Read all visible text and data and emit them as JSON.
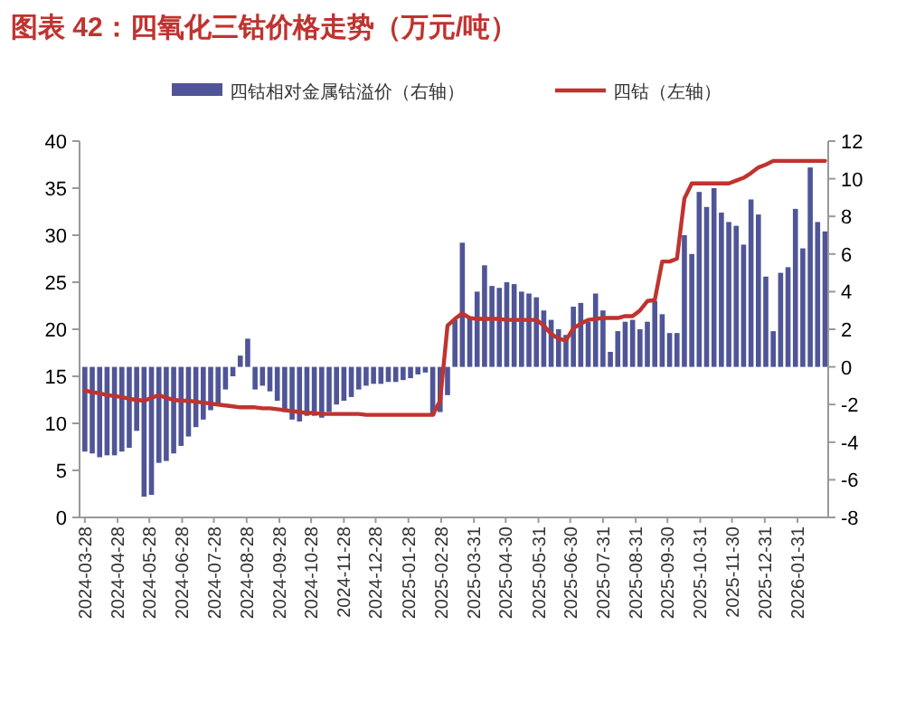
{
  "chart_data": {
    "type": "bar",
    "title": "图表 42：四氧化三钴价格走势（万元/吨）",
    "x": [
      "2024-03-28",
      "2024-04-04",
      "2024-04-11",
      "2024-04-18",
      "2024-04-25",
      "2024-05-02",
      "2024-05-09",
      "2024-05-16",
      "2024-05-23",
      "2024-05-30",
      "2024-06-06",
      "2024-06-13",
      "2024-06-20",
      "2024-06-27",
      "2024-07-04",
      "2024-07-11",
      "2024-07-18",
      "2024-07-25",
      "2024-08-01",
      "2024-08-08",
      "2024-08-15",
      "2024-08-22",
      "2024-08-29",
      "2024-09-05",
      "2024-09-12",
      "2024-09-19",
      "2024-09-26",
      "2024-10-03",
      "2024-10-10",
      "2024-10-17",
      "2024-10-24",
      "2024-10-31",
      "2024-11-07",
      "2024-11-14",
      "2024-11-21",
      "2024-11-28",
      "2024-12-05",
      "2024-12-12",
      "2024-12-19",
      "2024-12-26",
      "2025-01-02",
      "2025-01-09",
      "2025-01-16",
      "2025-01-23",
      "2025-01-30",
      "2025-02-06",
      "2025-02-13",
      "2025-02-20",
      "2025-02-27",
      "2025-03-06",
      "2025-03-13",
      "2025-03-20",
      "2025-03-27",
      "2025-04-03",
      "2025-04-10",
      "2025-04-17",
      "2025-04-24",
      "2025-05-01",
      "2025-05-08",
      "2025-05-15",
      "2025-05-22",
      "2025-05-29",
      "2025-06-05",
      "2025-06-12",
      "2025-06-19",
      "2025-06-26",
      "2025-07-03",
      "2025-07-10",
      "2025-07-17",
      "2025-07-24",
      "2025-07-31",
      "2025-08-07",
      "2025-08-14",
      "2025-08-21",
      "2025-08-28",
      "2025-09-04",
      "2025-09-11",
      "2025-09-18",
      "2025-09-25",
      "2025-10-02",
      "2025-10-09",
      "2025-10-16",
      "2025-10-23",
      "2025-10-30",
      "2025-11-06",
      "2025-11-13",
      "2025-11-20",
      "2025-11-27",
      "2025-12-04",
      "2025-12-11",
      "2025-12-18",
      "2025-12-25",
      "2026-01-01",
      "2026-01-08",
      "2026-01-15",
      "2026-01-22",
      "2026-01-29",
      "2026-02-05",
      "2026-02-12",
      "2026-02-19",
      "2026-02-26"
    ],
    "series": [
      {
        "name": "四钴相对金属钴溢价（右轴）",
        "axis": "y2",
        "color": "#4f5597",
        "values": [
          -4.5,
          -4.6,
          -4.8,
          -4.7,
          -4.7,
          -4.5,
          -4.3,
          -3.4,
          -6.9,
          -6.8,
          -5.1,
          -5.0,
          -4.6,
          -4.2,
          -3.7,
          -3.2,
          -2.8,
          -2.3,
          -2.0,
          -1.2,
          -0.5,
          0.6,
          1.5,
          -1.2,
          -1.0,
          -1.3,
          -1.8,
          -2.4,
          -2.8,
          -2.9,
          -2.6,
          -2.6,
          -2.7,
          -2.4,
          -2.0,
          -1.8,
          -1.6,
          -1.2,
          -1.0,
          -0.9,
          -0.9,
          -0.8,
          -0.8,
          -0.7,
          -0.6,
          -0.4,
          -0.3,
          -2.6,
          -2.4,
          -1.5,
          2.5,
          6.6,
          2.6,
          4.0,
          5.4,
          4.3,
          4.2,
          4.5,
          4.4,
          4.0,
          3.9,
          3.7,
          3.0,
          2.5,
          2.0,
          1.7,
          3.2,
          3.4,
          2.4,
          3.9,
          3.0,
          0.8,
          1.9,
          2.4,
          2.5,
          2.0,
          2.4,
          3.5,
          2.8,
          1.8,
          1.8,
          7.0,
          6.0,
          9.3,
          8.5,
          9.5,
          8.2,
          7.7,
          7.5,
          6.5,
          8.9,
          8.1,
          4.8,
          1.9,
          5.0,
          5.3,
          8.4,
          6.3,
          10.6,
          7.7,
          7.2
        ]
      },
      {
        "name": "四钴（左轴）",
        "type": "line",
        "axis": "y",
        "color": "#c0332f",
        "values": [
          13.5,
          13.3,
          13.2,
          13.0,
          12.9,
          12.8,
          12.6,
          12.5,
          12.4,
          12.7,
          13.0,
          12.7,
          12.5,
          12.4,
          12.4,
          12.3,
          12.2,
          12.1,
          12.0,
          11.9,
          11.8,
          11.7,
          11.7,
          11.7,
          11.6,
          11.6,
          11.5,
          11.4,
          11.3,
          11.2,
          11.1,
          11.1,
          11.0,
          11.0,
          11.0,
          11.0,
          11.0,
          11.0,
          10.9,
          10.9,
          10.9,
          10.9,
          10.9,
          10.9,
          10.9,
          10.9,
          10.9,
          10.9,
          12.4,
          20.4,
          21.1,
          21.7,
          21.2,
          21.1,
          21.1,
          21.1,
          21.1,
          21.0,
          21.0,
          21.0,
          21.0,
          21.0,
          20.4,
          19.5,
          19.0,
          18.8,
          20.1,
          20.6,
          21.0,
          21.1,
          21.2,
          21.2,
          21.2,
          21.4,
          21.4,
          22.0,
          23.0,
          23.1,
          27.2,
          27.2,
          27.5,
          33.9,
          35.5,
          35.5,
          35.5,
          35.5,
          35.5,
          35.5,
          35.8,
          36.1,
          36.6,
          37.2,
          37.5,
          37.9,
          37.9,
          37.9,
          37.9,
          37.9,
          37.9,
          37.9,
          37.9
        ]
      }
    ],
    "xlim": [
      "2024-03-23",
      "2026-03-01"
    ],
    "xticks": [
      "2024-03-28",
      "2024-04-28",
      "2024-05-28",
      "2024-06-28",
      "2024-07-28",
      "2024-08-28",
      "2024-09-28",
      "2024-10-28",
      "2024-11-28",
      "2024-12-28",
      "2025-01-28",
      "2025-02-28",
      "2025-03-31",
      "2025-04-30",
      "2025-05-31",
      "2025-06-30",
      "2025-07-31",
      "2025-08-31",
      "2025-09-30",
      "2025-10-31",
      "2025-11-30",
      "2025-12-31",
      "2026-01-31"
    ],
    "ylim": [
      0,
      40
    ],
    "yticks": [
      0,
      5,
      10,
      15,
      20,
      25,
      30,
      35,
      40
    ],
    "y2lim": [
      -8,
      12
    ],
    "y2ticks": [
      -8,
      -6,
      -4,
      -2,
      0,
      2,
      4,
      6,
      8,
      10,
      12
    ],
    "legend": "top",
    "grid": false
  }
}
